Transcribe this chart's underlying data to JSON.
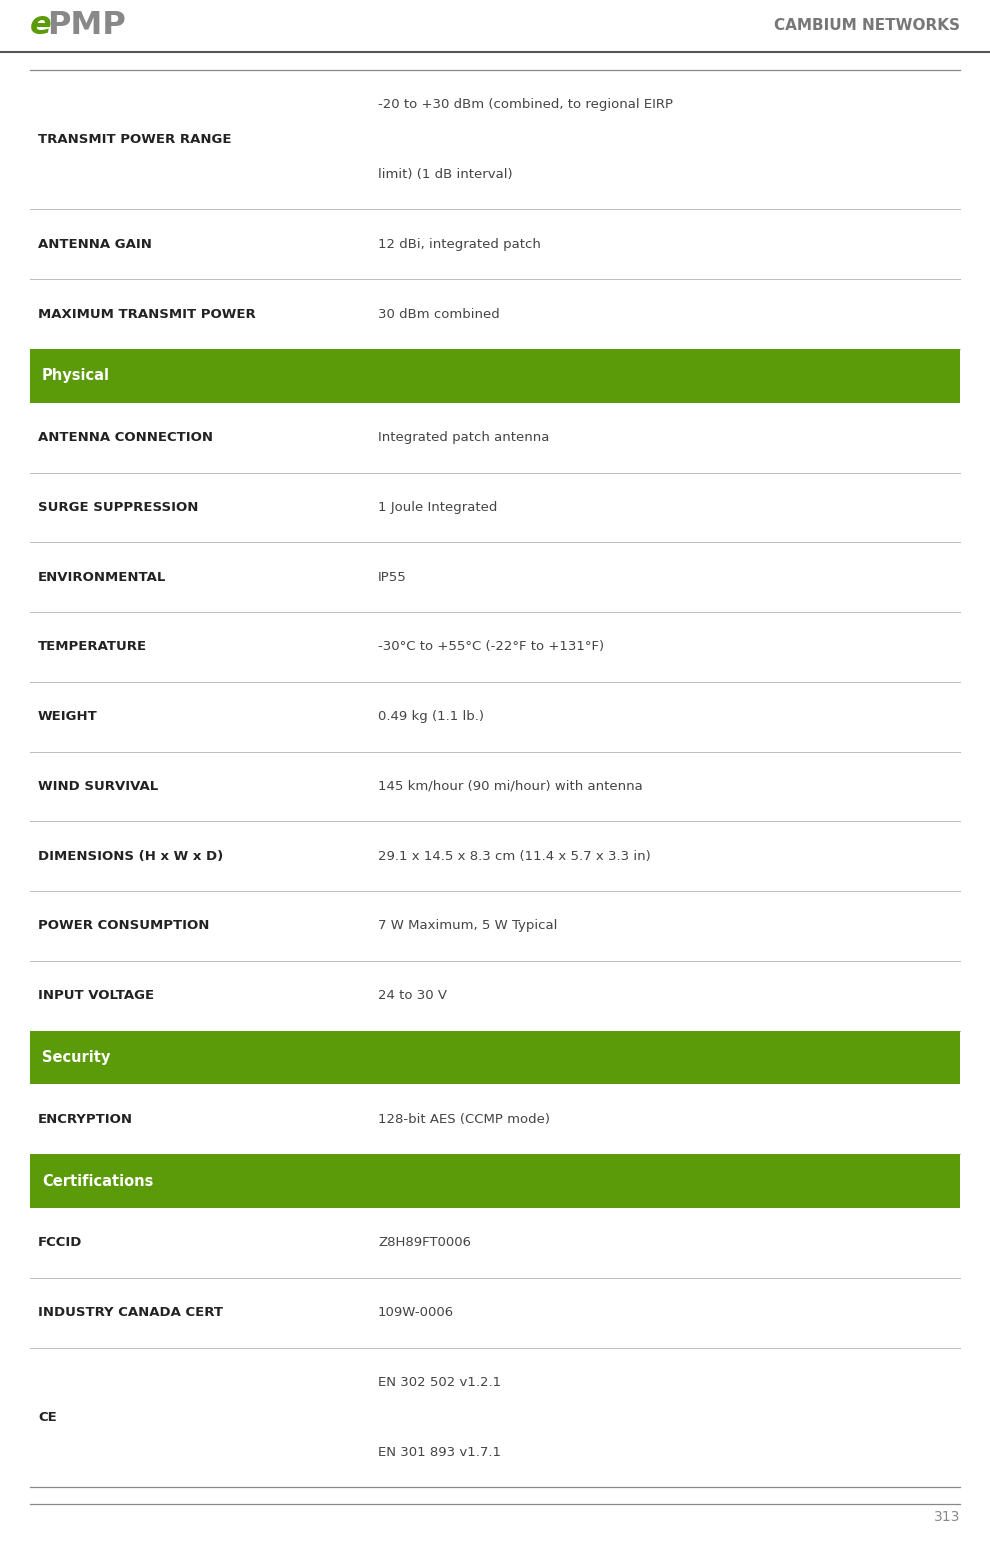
{
  "header_right_text": "CAMBIUM NETWORKS",
  "page_number": "313",
  "green_color": "#5b9a08",
  "header_line_color": "#555555",
  "text_color_label": "#222222",
  "text_color_value": "#444444",
  "row_line_color": "#bbbbbb",
  "bg_color": "#ffffff",
  "fig_width": 9.9,
  "fig_height": 15.42,
  "dpi": 100,
  "rows": [
    {
      "type": "data",
      "label": "TRANSMIT POWER RANGE",
      "value": "-20 to +30 dBm (combined, to regional EIRP\nlimit) (1 dB interval)"
    },
    {
      "type": "data",
      "label": "ANTENNA GAIN",
      "value": "12 dBi, integrated patch"
    },
    {
      "type": "data",
      "label": "MAXIMUM TRANSMIT POWER",
      "value": "30 dBm combined"
    },
    {
      "type": "section",
      "label": "Physical"
    },
    {
      "type": "data",
      "label": "ANTENNA CONNECTION",
      "value": "Integrated patch antenna"
    },
    {
      "type": "data",
      "label": "SURGE SUPPRESSION",
      "value": "1 Joule Integrated"
    },
    {
      "type": "data",
      "label": "ENVIRONMENTAL",
      "value": "IP55"
    },
    {
      "type": "data",
      "label": "TEMPERATURE",
      "value": "-30°C to +55°C (-22°F to +131°F)"
    },
    {
      "type": "data",
      "label": "WEIGHT",
      "value": "0.49 kg (1.1 lb.)"
    },
    {
      "type": "data",
      "label": "WIND SURVIVAL",
      "value": "145 km/hour (90 mi/hour) with antenna"
    },
    {
      "type": "data",
      "label": "DIMENSIONS (H x W x D)",
      "value": "29.1 x 14.5 x 8.3 cm (11.4 x 5.7 x 3.3 in)"
    },
    {
      "type": "data",
      "label": "POWER CONSUMPTION",
      "value": "7 W Maximum, 5 W Typical"
    },
    {
      "type": "data",
      "label": "INPUT VOLTAGE",
      "value": "24 to 30 V"
    },
    {
      "type": "section",
      "label": "Security"
    },
    {
      "type": "data",
      "label": "ENCRYPTION",
      "value": "128-bit AES (CCMP mode)"
    },
    {
      "type": "section",
      "label": "Certifications"
    },
    {
      "type": "data",
      "label": "FCCID",
      "value": "Z8H89FT0006"
    },
    {
      "type": "data",
      "label": "INDUSTRY CANADA CERT",
      "value": "109W-0006"
    },
    {
      "type": "data",
      "label": "CE",
      "value": "EN 302 502 v1.2.1\nEN 301 893 v1.7.1"
    }
  ]
}
